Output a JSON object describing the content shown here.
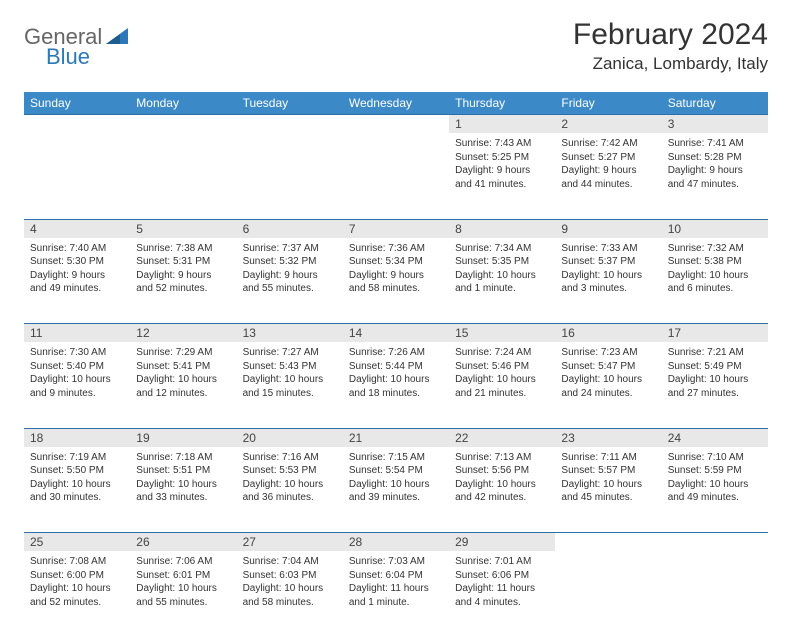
{
  "brand": {
    "part1": "General",
    "part2": "Blue"
  },
  "title": "February 2024",
  "location": "Zanica, Lombardy, Italy",
  "colors": {
    "header_bg": "#3b89c7",
    "header_text": "#ffffff",
    "rule": "#2d6ea8",
    "daynum_bg": "#e8e8e8",
    "brand_gray": "#666666",
    "brand_blue": "#2d78b8"
  },
  "day_headers": [
    "Sunday",
    "Monday",
    "Tuesday",
    "Wednesday",
    "Thursday",
    "Friday",
    "Saturday"
  ],
  "weeks": [
    [
      null,
      null,
      null,
      null,
      {
        "n": "1",
        "sunrise": "7:43 AM",
        "sunset": "5:25 PM",
        "daylight": "9 hours and 41 minutes."
      },
      {
        "n": "2",
        "sunrise": "7:42 AM",
        "sunset": "5:27 PM",
        "daylight": "9 hours and 44 minutes."
      },
      {
        "n": "3",
        "sunrise": "7:41 AM",
        "sunset": "5:28 PM",
        "daylight": "9 hours and 47 minutes."
      }
    ],
    [
      {
        "n": "4",
        "sunrise": "7:40 AM",
        "sunset": "5:30 PM",
        "daylight": "9 hours and 49 minutes."
      },
      {
        "n": "5",
        "sunrise": "7:38 AM",
        "sunset": "5:31 PM",
        "daylight": "9 hours and 52 minutes."
      },
      {
        "n": "6",
        "sunrise": "7:37 AM",
        "sunset": "5:32 PM",
        "daylight": "9 hours and 55 minutes."
      },
      {
        "n": "7",
        "sunrise": "7:36 AM",
        "sunset": "5:34 PM",
        "daylight": "9 hours and 58 minutes."
      },
      {
        "n": "8",
        "sunrise": "7:34 AM",
        "sunset": "5:35 PM",
        "daylight": "10 hours and 1 minute."
      },
      {
        "n": "9",
        "sunrise": "7:33 AM",
        "sunset": "5:37 PM",
        "daylight": "10 hours and 3 minutes."
      },
      {
        "n": "10",
        "sunrise": "7:32 AM",
        "sunset": "5:38 PM",
        "daylight": "10 hours and 6 minutes."
      }
    ],
    [
      {
        "n": "11",
        "sunrise": "7:30 AM",
        "sunset": "5:40 PM",
        "daylight": "10 hours and 9 minutes."
      },
      {
        "n": "12",
        "sunrise": "7:29 AM",
        "sunset": "5:41 PM",
        "daylight": "10 hours and 12 minutes."
      },
      {
        "n": "13",
        "sunrise": "7:27 AM",
        "sunset": "5:43 PM",
        "daylight": "10 hours and 15 minutes."
      },
      {
        "n": "14",
        "sunrise": "7:26 AM",
        "sunset": "5:44 PM",
        "daylight": "10 hours and 18 minutes."
      },
      {
        "n": "15",
        "sunrise": "7:24 AM",
        "sunset": "5:46 PM",
        "daylight": "10 hours and 21 minutes."
      },
      {
        "n": "16",
        "sunrise": "7:23 AM",
        "sunset": "5:47 PM",
        "daylight": "10 hours and 24 minutes."
      },
      {
        "n": "17",
        "sunrise": "7:21 AM",
        "sunset": "5:49 PM",
        "daylight": "10 hours and 27 minutes."
      }
    ],
    [
      {
        "n": "18",
        "sunrise": "7:19 AM",
        "sunset": "5:50 PM",
        "daylight": "10 hours and 30 minutes."
      },
      {
        "n": "19",
        "sunrise": "7:18 AM",
        "sunset": "5:51 PM",
        "daylight": "10 hours and 33 minutes."
      },
      {
        "n": "20",
        "sunrise": "7:16 AM",
        "sunset": "5:53 PM",
        "daylight": "10 hours and 36 minutes."
      },
      {
        "n": "21",
        "sunrise": "7:15 AM",
        "sunset": "5:54 PM",
        "daylight": "10 hours and 39 minutes."
      },
      {
        "n": "22",
        "sunrise": "7:13 AM",
        "sunset": "5:56 PM",
        "daylight": "10 hours and 42 minutes."
      },
      {
        "n": "23",
        "sunrise": "7:11 AM",
        "sunset": "5:57 PM",
        "daylight": "10 hours and 45 minutes."
      },
      {
        "n": "24",
        "sunrise": "7:10 AM",
        "sunset": "5:59 PM",
        "daylight": "10 hours and 49 minutes."
      }
    ],
    [
      {
        "n": "25",
        "sunrise": "7:08 AM",
        "sunset": "6:00 PM",
        "daylight": "10 hours and 52 minutes."
      },
      {
        "n": "26",
        "sunrise": "7:06 AM",
        "sunset": "6:01 PM",
        "daylight": "10 hours and 55 minutes."
      },
      {
        "n": "27",
        "sunrise": "7:04 AM",
        "sunset": "6:03 PM",
        "daylight": "10 hours and 58 minutes."
      },
      {
        "n": "28",
        "sunrise": "7:03 AM",
        "sunset": "6:04 PM",
        "daylight": "11 hours and 1 minute."
      },
      {
        "n": "29",
        "sunrise": "7:01 AM",
        "sunset": "6:06 PM",
        "daylight": "11 hours and 4 minutes."
      },
      null,
      null
    ]
  ],
  "labels": {
    "sunrise": "Sunrise: ",
    "sunset": "Sunset: ",
    "daylight": "Daylight: "
  }
}
